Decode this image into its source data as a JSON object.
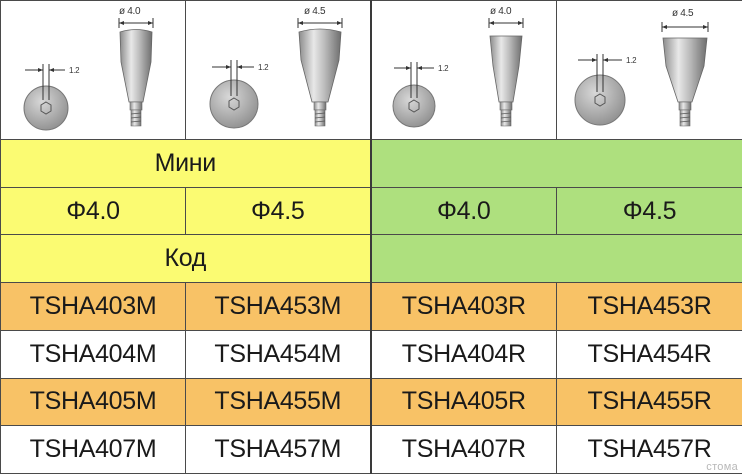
{
  "drawings": [
    {
      "diameter": "ø 4.0",
      "width_label": "1.2"
    },
    {
      "diameter": "ø 4.5",
      "width_label": "1.2"
    },
    {
      "diameter": "ø 4.0",
      "width_label": "1.2"
    },
    {
      "diameter": "ø 4.5",
      "width_label": "1.2"
    }
  ],
  "header": {
    "group_label": "Мини",
    "sizes": [
      "Φ4.0",
      "Φ4.5",
      "Φ4.0",
      "Φ4.5"
    ],
    "code_label": "Код"
  },
  "codes": [
    [
      "TSHA403M",
      "TSHA453M",
      "TSHA403R",
      "TSHA453R"
    ],
    [
      "TSHA404M",
      "TSHA454M",
      "TSHA404R",
      "TSHA454R"
    ],
    [
      "TSHA405M",
      "TSHA455M",
      "TSHA405R",
      "TSHA455R"
    ],
    [
      "TSHA407M",
      "TSHA457M",
      "TSHA407R",
      "TSHA457R"
    ]
  ],
  "watermark": "стома",
  "colors": {
    "yellow": "#fbfb72",
    "green": "#aee07e",
    "orange": "#f8c266"
  }
}
